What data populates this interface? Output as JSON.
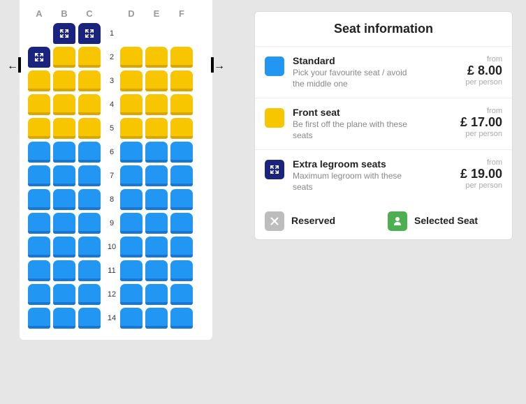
{
  "columns": [
    "A",
    "B",
    "C",
    "D",
    "E",
    "F"
  ],
  "rows": [
    {
      "num": 1,
      "seats": [
        "",
        "extra",
        "extra",
        "",
        "",
        ""
      ]
    },
    {
      "num": 2,
      "seats": [
        "extra",
        "front",
        "front",
        "front",
        "front",
        "front"
      ]
    },
    {
      "num": 3,
      "seats": [
        "front",
        "front",
        "front",
        "front",
        "front",
        "front"
      ]
    },
    {
      "num": 4,
      "seats": [
        "front",
        "front",
        "front",
        "front",
        "front",
        "front"
      ]
    },
    {
      "num": 5,
      "seats": [
        "front",
        "front",
        "front",
        "front",
        "front",
        "front"
      ]
    },
    {
      "num": 6,
      "seats": [
        "standard",
        "standard",
        "standard",
        "standard",
        "standard",
        "standard"
      ]
    },
    {
      "num": 7,
      "seats": [
        "standard",
        "standard",
        "standard",
        "standard",
        "standard",
        "standard"
      ]
    },
    {
      "num": 8,
      "seats": [
        "standard",
        "standard",
        "standard",
        "standard",
        "standard",
        "standard"
      ]
    },
    {
      "num": 9,
      "seats": [
        "standard",
        "standard",
        "standard",
        "standard",
        "standard",
        "standard"
      ]
    },
    {
      "num": 10,
      "seats": [
        "standard",
        "standard",
        "standard",
        "standard",
        "standard",
        "standard"
      ]
    },
    {
      "num": 11,
      "seats": [
        "standard",
        "standard",
        "standard",
        "standard",
        "standard",
        "standard"
      ]
    },
    {
      "num": 12,
      "seats": [
        "standard",
        "standard",
        "standard",
        "standard",
        "standard",
        "standard"
      ]
    },
    {
      "num": 14,
      "seats": [
        "standard",
        "standard",
        "standard",
        "standard",
        "standard",
        "standard"
      ]
    }
  ],
  "colors": {
    "standard": "#2196f3",
    "front": "#f7c600",
    "extra": "#1a237e",
    "reserved": "#bdbdbd",
    "selected": "#4caf50",
    "page_bg": "#e6e6e6",
    "panel_bg": "#ffffff"
  },
  "info": {
    "title": "Seat information",
    "types": [
      {
        "key": "standard",
        "name": "Standard",
        "desc": "Pick your favourite seat / avoid the middle one",
        "from": "from",
        "price": "£ 8.00",
        "per": "per person"
      },
      {
        "key": "front",
        "name": "Front seat",
        "desc": "Be first off the plane with these seats",
        "from": "from",
        "price": "£ 17.00",
        "per": "per person"
      },
      {
        "key": "extra",
        "name": "Extra legroom seats",
        "desc": "Maximum legroom with these seats",
        "from": "from",
        "price": "£ 19.00",
        "per": "per person"
      }
    ],
    "legend": {
      "reserved": "Reserved",
      "selected": "Selected Seat"
    }
  }
}
